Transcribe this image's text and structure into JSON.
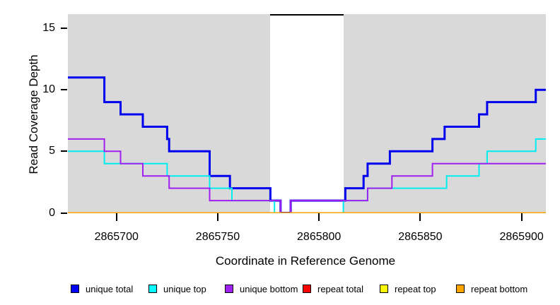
{
  "chart_data": {
    "type": "line",
    "subtype": "step-coverage",
    "title": "",
    "xlabel": "Coordinate in Reference Genome",
    "ylabel": "Read Coverage Depth",
    "xlim": [
      2865676,
      2865912
    ],
    "ylim": [
      0,
      16.2
    ],
    "x_ticks": [
      2865700,
      2865750,
      2865800,
      2865850,
      2865900
    ],
    "y_ticks": [
      0,
      5,
      10,
      15
    ],
    "grid": false,
    "plot_background": "#d9d9d9",
    "gap_regions": [
      {
        "x_start": 2865776,
        "x_end": 2865812,
        "color": "#ffffff",
        "top_border_color": "#000000"
      }
    ],
    "legend_position": "bottom",
    "series": [
      {
        "name": "unique total",
        "color": "#0000EE",
        "line_width": 3,
        "steps": [
          [
            2865676,
            11
          ],
          [
            2865694,
            9
          ],
          [
            2865702,
            8
          ],
          [
            2865713,
            7
          ],
          [
            2865725,
            6
          ],
          [
            2865726,
            5
          ],
          [
            2865746,
            3
          ],
          [
            2865756,
            2
          ],
          [
            2865776,
            1
          ],
          [
            2865781,
            0
          ],
          [
            2865786,
            1
          ],
          [
            2865813,
            2
          ],
          [
            2865822,
            3
          ],
          [
            2865824,
            4
          ],
          [
            2865835,
            5
          ],
          [
            2865856,
            6
          ],
          [
            2865862,
            7
          ],
          [
            2865879,
            8
          ],
          [
            2865883,
            9
          ],
          [
            2865907,
            10
          ]
        ]
      },
      {
        "name": "unique top",
        "color": "#00EEEE",
        "line_width": 2,
        "steps": [
          [
            2865676,
            5
          ],
          [
            2865694,
            4
          ],
          [
            2865725,
            3
          ],
          [
            2865746,
            2
          ],
          [
            2865757,
            1
          ],
          [
            2865778,
            0
          ],
          [
            2865812,
            1
          ],
          [
            2865824,
            2
          ],
          [
            2865863,
            3
          ],
          [
            2865879,
            4
          ],
          [
            2865883,
            5
          ],
          [
            2865907,
            6
          ]
        ]
      },
      {
        "name": "unique bottom",
        "color": "#A020F0",
        "line_width": 2,
        "steps": [
          [
            2865676,
            6
          ],
          [
            2865694,
            5
          ],
          [
            2865702,
            4
          ],
          [
            2865713,
            3
          ],
          [
            2865726,
            2
          ],
          [
            2865746,
            1
          ],
          [
            2865781,
            0
          ],
          [
            2865786,
            1
          ],
          [
            2865824,
            2
          ],
          [
            2865836,
            3
          ],
          [
            2865856,
            4
          ]
        ]
      },
      {
        "name": "repeat total",
        "color": "#EE0000",
        "line_width": 2,
        "steps": [
          [
            2865676,
            0
          ]
        ]
      },
      {
        "name": "repeat top",
        "color": "#FFFF00",
        "line_width": 2,
        "steps": [
          [
            2865676,
            0
          ]
        ]
      },
      {
        "name": "repeat bottom",
        "color": "#FFA500",
        "line_width": 2,
        "steps": [
          [
            2865676,
            0
          ]
        ]
      }
    ],
    "legend": [
      {
        "label": "unique total",
        "color": "#0000FF"
      },
      {
        "label": "unique top",
        "color": "#00FFFF"
      },
      {
        "label": "unique bottom",
        "color": "#A020F0"
      },
      {
        "label": "repeat total",
        "color": "#FF0000"
      },
      {
        "label": "repeat top",
        "color": "#FFFF00"
      },
      {
        "label": "repeat bottom",
        "color": "#FFA500"
      }
    ]
  }
}
